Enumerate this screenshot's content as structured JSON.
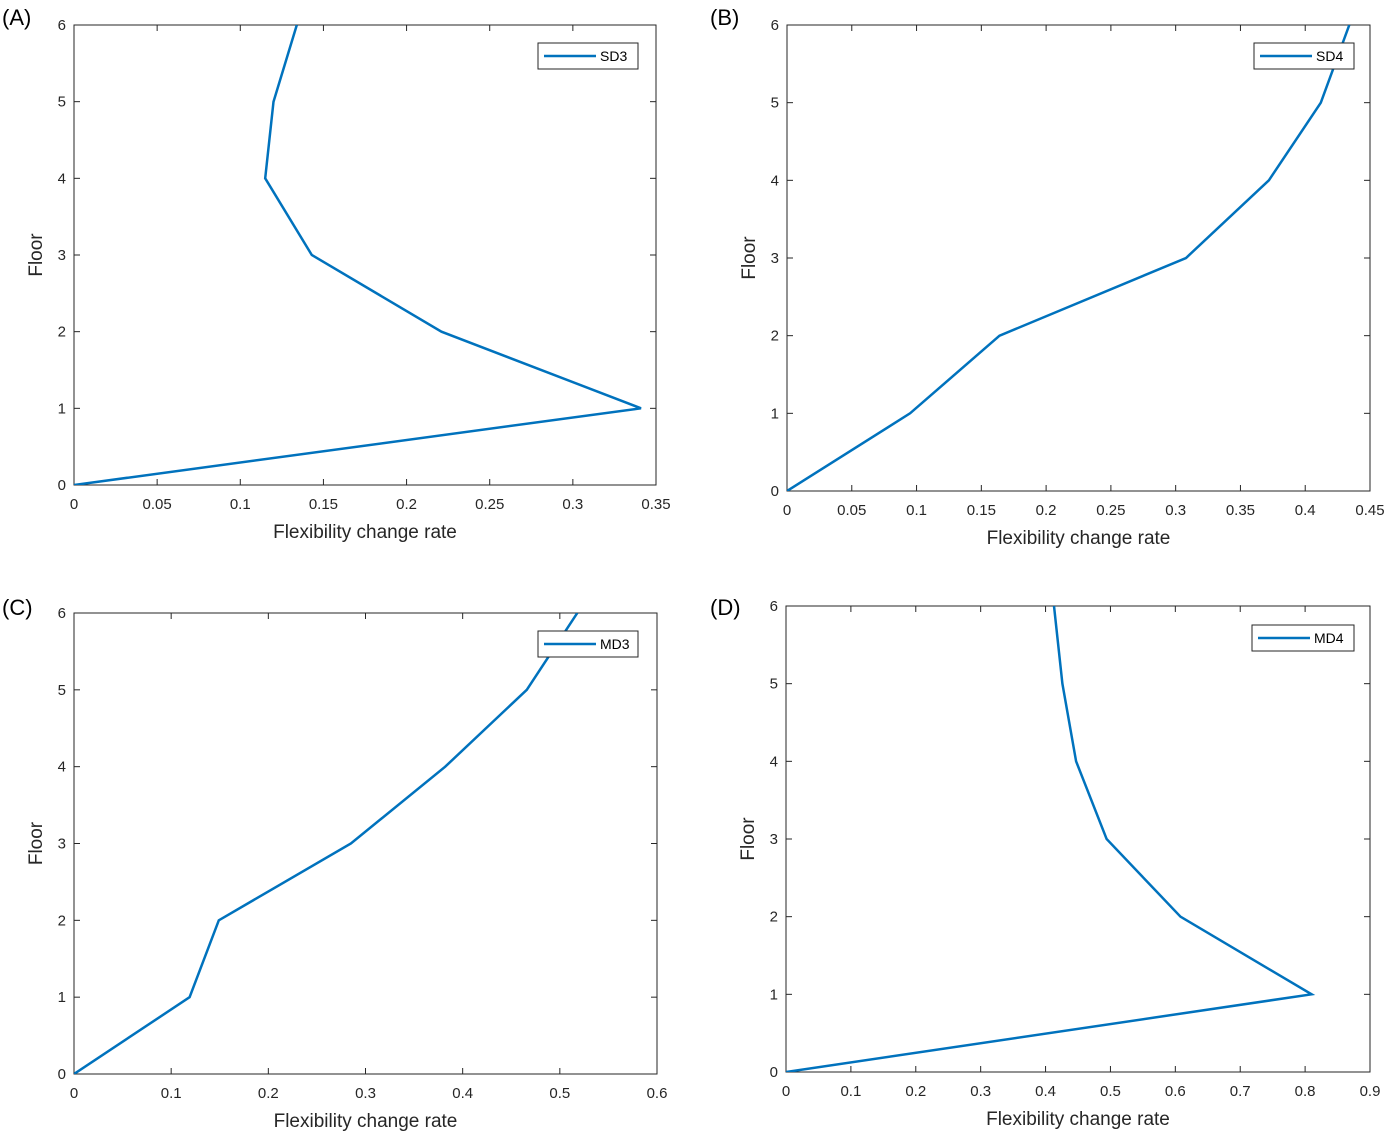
{
  "colors": {
    "series": "#0072BD",
    "axis": "#262626",
    "background": "#ffffff"
  },
  "chart_data": [
    {
      "panel": "(A)",
      "type": "line",
      "xlabel": "Flexibility change rate",
      "ylabel": "Floor",
      "xlim": [
        0,
        0.35
      ],
      "ylim": [
        0,
        6
      ],
      "xticks": [
        0,
        0.05,
        0.1,
        0.15,
        0.2,
        0.25,
        0.3,
        0.35
      ],
      "xtick_labels": [
        "0",
        "0.05",
        "0.1",
        "0.15",
        "0.2",
        "0.25",
        "0.3",
        "0.35"
      ],
      "yticks": [
        0,
        1,
        2,
        3,
        4,
        5,
        6
      ],
      "ytick_labels": [
        "0",
        "1",
        "2",
        "3",
        "4",
        "5",
        "6"
      ],
      "legend_position": "top-right",
      "grid": false,
      "series": [
        {
          "name": "SD3",
          "x": [
            0,
            0.341,
            0.221,
            0.143,
            0.115,
            0.12,
            0.134
          ],
          "y": [
            0,
            1,
            2,
            3,
            4,
            5,
            6
          ]
        }
      ]
    },
    {
      "panel": "(B)",
      "type": "line",
      "xlabel": "Flexibility change rate",
      "ylabel": "Floor",
      "xlim": [
        0,
        0.45
      ],
      "ylim": [
        0,
        6
      ],
      "xticks": [
        0,
        0.05,
        0.1,
        0.15,
        0.2,
        0.25,
        0.3,
        0.35,
        0.4,
        0.45
      ],
      "xtick_labels": [
        "0",
        "0.05",
        "0.1",
        "0.15",
        "0.2",
        "0.25",
        "0.3",
        "0.35",
        "0.4",
        "0.45"
      ],
      "yticks": [
        0,
        1,
        2,
        3,
        4,
        5,
        6
      ],
      "ytick_labels": [
        "0",
        "1",
        "2",
        "3",
        "4",
        "5",
        "6"
      ],
      "legend_position": "top-right",
      "grid": false,
      "series": [
        {
          "name": "SD4",
          "x": [
            0,
            0.095,
            0.164,
            0.308,
            0.372,
            0.412,
            0.434
          ],
          "y": [
            0,
            1,
            2,
            3,
            4,
            5,
            6
          ]
        }
      ]
    },
    {
      "panel": "(C)",
      "type": "line",
      "xlabel": "Flexibility change rate",
      "ylabel": "Floor",
      "xlim": [
        0,
        0.6
      ],
      "ylim": [
        0,
        6
      ],
      "xticks": [
        0,
        0.1,
        0.2,
        0.3,
        0.4,
        0.5,
        0.6
      ],
      "xtick_labels": [
        "0",
        "0.1",
        "0.2",
        "0.3",
        "0.4",
        "0.5",
        "0.6"
      ],
      "yticks": [
        0,
        1,
        2,
        3,
        4,
        5,
        6
      ],
      "ytick_labels": [
        "0",
        "1",
        "2",
        "3",
        "4",
        "5",
        "6"
      ],
      "legend_position": "top-right",
      "grid": false,
      "series": [
        {
          "name": "MD3",
          "x": [
            0,
            0.119,
            0.149,
            0.285,
            0.382,
            0.466,
            0.518
          ],
          "y": [
            0,
            1,
            2,
            3,
            4,
            5,
            6
          ]
        }
      ]
    },
    {
      "panel": "(D)",
      "type": "line",
      "xlabel": "Flexibility change rate",
      "ylabel": "Floor",
      "xlim": [
        0,
        0.9
      ],
      "ylim": [
        0,
        6
      ],
      "xticks": [
        0,
        0.1,
        0.2,
        0.3,
        0.4,
        0.5,
        0.6,
        0.7,
        0.8,
        0.9
      ],
      "xtick_labels": [
        "0",
        "0.1",
        "0.2",
        "0.3",
        "0.4",
        "0.5",
        "0.6",
        "0.7",
        "0.8",
        "0.9"
      ],
      "yticks": [
        0,
        1,
        2,
        3,
        4,
        5,
        6
      ],
      "ytick_labels": [
        "0",
        "1",
        "2",
        "3",
        "4",
        "5",
        "6"
      ],
      "legend_position": "top-right",
      "grid": false,
      "series": [
        {
          "name": "MD4",
          "x": [
            0,
            0.81,
            0.608,
            0.494,
            0.447,
            0.426,
            0.413
          ],
          "y": [
            0,
            1,
            2,
            3,
            4,
            5,
            6
          ]
        }
      ]
    }
  ]
}
